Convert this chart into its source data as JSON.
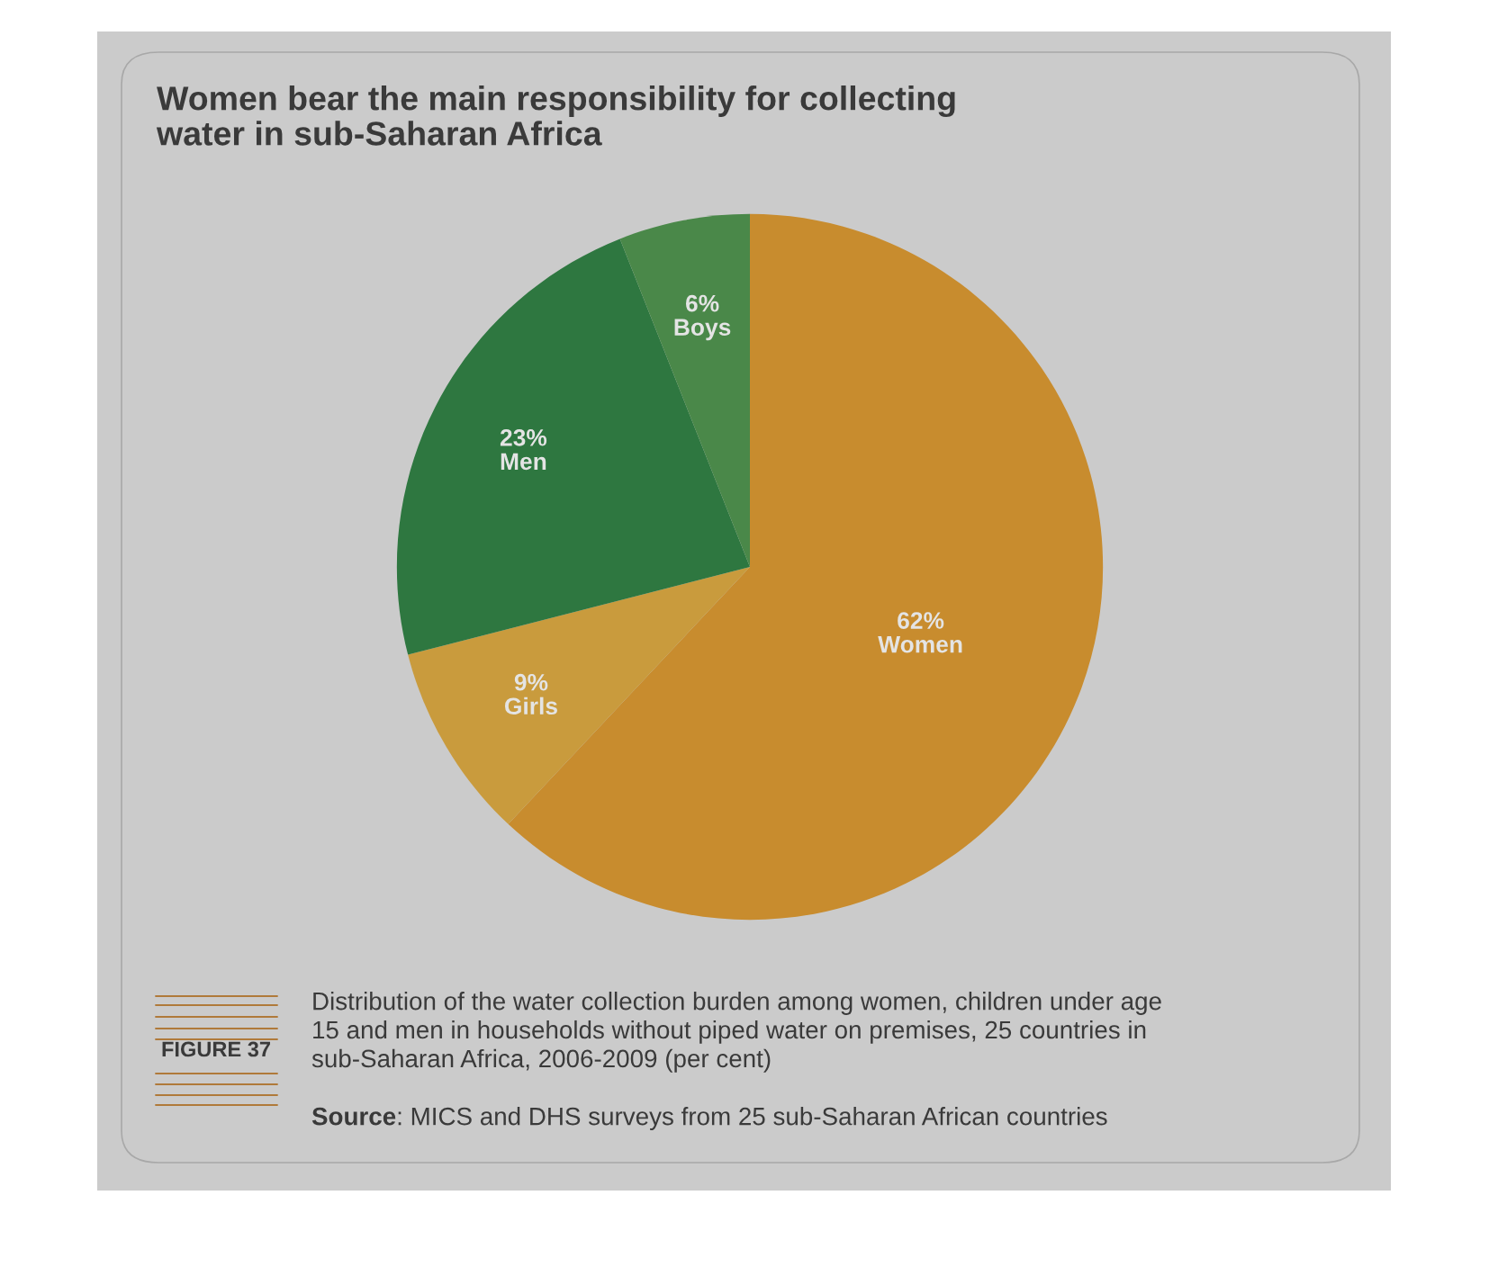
{
  "chart_data": {
    "type": "pie",
    "title": "Women bear the main responsibility for collecting\nwater in sub-Saharan Africa",
    "categories": [
      "Women",
      "Girls",
      "Men",
      "Boys"
    ],
    "values": [
      62,
      9,
      23,
      6
    ],
    "colors": [
      "#c88c2e",
      "#c99b3d",
      "#2e7740",
      "#4a8849"
    ],
    "value_labels": [
      "62%",
      "9%",
      "23%",
      "6%"
    ],
    "annotations": [
      "FIGURE 37",
      "Distribution of the water collection burden among women, children under age\n15 and men in households without piped water on premises, 25 countries in\nsub-Saharan Africa, 2006-2009 (per cent)",
      "Source: MICS and DHS surveys from 25 sub-Saharan African countries"
    ]
  }
}
